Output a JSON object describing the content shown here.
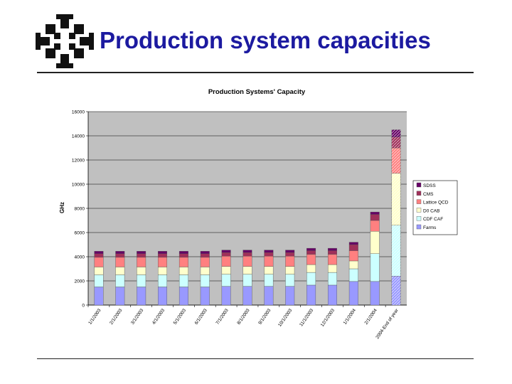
{
  "slide": {
    "title": "Production system capacities"
  },
  "colors": {
    "plot_bg": "#c0c0c0",
    "farms": "#9999ff",
    "cdf_caf": "#ccffff",
    "d0_cab": "#ffffcc",
    "lattice_qcd": "#ff8080",
    "cms": "#a0305a",
    "sdss": "#660066"
  },
  "chart_data": {
    "type": "bar",
    "stacked": true,
    "title": "Production Systems' Capacity",
    "xlabel": "",
    "ylabel": "GHz",
    "ylim": [
      0,
      16000
    ],
    "yticks": [
      0,
      2000,
      4000,
      6000,
      8000,
      10000,
      12000,
      14000,
      16000
    ],
    "yticklabels": [
      "0",
      "2000",
      "4000",
      "6000",
      "8000",
      "10000",
      "12000",
      "14000",
      "16000"
    ],
    "grid": true,
    "legend": "right",
    "categories": [
      "1/1/2003",
      "2/1/2003",
      "3/1/2003",
      "4/1/2003",
      "5/1/2003",
      "6/1/2003",
      "7/1/2003",
      "8/1/2003",
      "9/1/2003",
      "10/1/2003",
      "11/1/2003",
      "12/1/2003",
      "1/1/2004",
      "2/1/2004",
      "2004-End of year"
    ],
    "series": [
      {
        "name": "Farms",
        "values": [
          1500,
          1500,
          1500,
          1500,
          1500,
          1500,
          1550,
          1550,
          1550,
          1550,
          1650,
          1650,
          1950,
          1950,
          2400
        ]
      },
      {
        "name": "CDF CAF",
        "values": [
          1000,
          1000,
          1000,
          1000,
          1000,
          1000,
          1000,
          1000,
          1000,
          1000,
          1050,
          1050,
          1050,
          2300,
          4200
        ]
      },
      {
        "name": "D0 CAB",
        "values": [
          650,
          650,
          650,
          650,
          650,
          650,
          650,
          650,
          650,
          650,
          650,
          650,
          650,
          1850,
          4300
        ]
      },
      {
        "name": "Lattice QCD",
        "values": [
          800,
          800,
          800,
          800,
          800,
          800,
          850,
          850,
          850,
          850,
          850,
          850,
          850,
          900,
          2100
        ]
      },
      {
        "name": "CMS",
        "values": [
          300,
          300,
          300,
          300,
          300,
          300,
          300,
          300,
          300,
          300,
          300,
          300,
          500,
          500,
          900
        ]
      },
      {
        "name": "SDSS",
        "values": [
          200,
          200,
          200,
          200,
          200,
          200,
          200,
          200,
          200,
          200,
          200,
          200,
          200,
          200,
          600
        ]
      }
    ],
    "projected_category": "2004-End of year"
  }
}
